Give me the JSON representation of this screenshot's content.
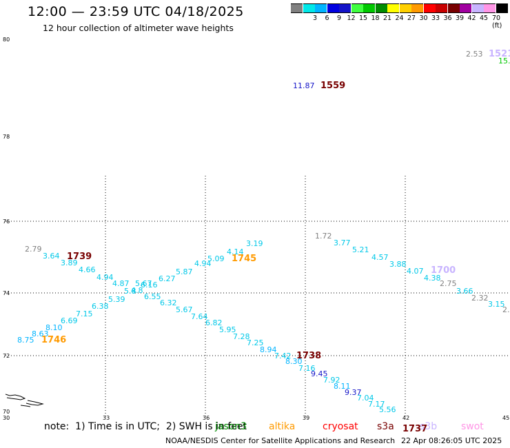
{
  "header": {
    "title": "12:00 — 23:59 UTC 04/18/2025",
    "subtitle": "12 hour collection of altimeter wave heights"
  },
  "legend": {
    "unit": "70 (ft)",
    "entries": [
      {
        "label": "",
        "color": "#808080"
      },
      {
        "label": "3",
        "color": "#00e8e8"
      },
      {
        "label": "6",
        "color": "#00b4ff"
      },
      {
        "label": "9",
        "color": "#0000e0"
      },
      {
        "label": "12",
        "color": "#1414c8"
      },
      {
        "label": "15",
        "color": "#40ff40"
      },
      {
        "label": "18",
        "color": "#00c800"
      },
      {
        "label": "21",
        "color": "#008c00"
      },
      {
        "label": "24",
        "color": "#ffff00"
      },
      {
        "label": "27",
        "color": "#ffd000"
      },
      {
        "label": "30",
        "color": "#ff9a00"
      },
      {
        "label": "33",
        "color": "#ff0000"
      },
      {
        "label": "36",
        "color": "#c80000"
      },
      {
        "label": "39",
        "color": "#780000"
      },
      {
        "label": "42",
        "color": "#a000a0"
      },
      {
        "label": "45",
        "color": "#c8b4ff"
      },
      {
        "label": "",
        "color": "#ff96e6"
      },
      {
        "label": "",
        "color": "#000000"
      }
    ]
  },
  "axes": {
    "lat_labels": [
      "70",
      "72",
      "74",
      "76",
      "78",
      "80"
    ],
    "lon_labels": [
      "30",
      "33",
      "36",
      "39",
      "42",
      "45"
    ]
  },
  "soundings": [
    {
      "text": "2.53",
      "color": "#808080"
    },
    {
      "text": "1521",
      "color": "#c8b4ff"
    },
    {
      "text": "15.",
      "color": "#00c800"
    },
    {
      "text": "11.87",
      "color": "#1414c8"
    },
    {
      "text": "1559",
      "color": "#780000"
    },
    {
      "text": "2.79",
      "color": "#808080"
    },
    {
      "text": "3.64",
      "color": "#00c8e8"
    },
    {
      "text": "1739",
      "color": "#780000"
    },
    {
      "text": "3.89",
      "color": "#00c8e8"
    },
    {
      "text": "4.66",
      "color": "#00c8e8"
    },
    {
      "text": "4.94",
      "color": "#00c8e8"
    },
    {
      "text": "4.87",
      "color": "#00c8e8"
    },
    {
      "text": "5.39",
      "color": "#00c8e8"
    },
    {
      "text": "5.8",
      "color": "#00c8e8"
    },
    {
      "text": "4.8",
      "color": "#00c8e8"
    },
    {
      "text": "5.67",
      "color": "#00c8e8"
    },
    {
      "text": "6.16",
      "color": "#00c8e8"
    },
    {
      "text": "6.55",
      "color": "#00c8e8"
    },
    {
      "text": "6.27",
      "color": "#00c8e8"
    },
    {
      "text": "6.32",
      "color": "#00c8e8"
    },
    {
      "text": "5.87",
      "color": "#00c8e8"
    },
    {
      "text": "5.67",
      "color": "#00c8e8"
    },
    {
      "text": "4.94",
      "color": "#00c8e8"
    },
    {
      "text": "5.09",
      "color": "#00c8e8"
    },
    {
      "text": "4.14",
      "color": "#00c8e8"
    },
    {
      "text": "1745",
      "color": "#ff9a00"
    },
    {
      "text": "3.19",
      "color": "#00c8e8"
    },
    {
      "text": "6.38",
      "color": "#00c8e8"
    },
    {
      "text": "7.15",
      "color": "#00c8e8"
    },
    {
      "text": "6.69",
      "color": "#00c8e8"
    },
    {
      "text": "8.10",
      "color": "#00b4ff"
    },
    {
      "text": "8.63",
      "color": "#00b4ff"
    },
    {
      "text": "8.75",
      "color": "#00b4ff"
    },
    {
      "text": "1746",
      "color": "#ff9a00"
    },
    {
      "text": "7.64",
      "color": "#00c8e8"
    },
    {
      "text": "6.82",
      "color": "#00c8e8"
    },
    {
      "text": "5.95",
      "color": "#00c8e8"
    },
    {
      "text": "7.28",
      "color": "#00c8e8"
    },
    {
      "text": "7.25",
      "color": "#00c8e8"
    },
    {
      "text": "8.94",
      "color": "#00b4ff"
    },
    {
      "text": "7.42",
      "color": "#00c8e8"
    },
    {
      "text": "1738",
      "color": "#780000"
    },
    {
      "text": "8.30",
      "color": "#00b4ff"
    },
    {
      "text": "7.16",
      "color": "#00c8e8"
    },
    {
      "text": "9.45",
      "color": "#1414c8"
    },
    {
      "text": "7.92",
      "color": "#00c8e8"
    },
    {
      "text": "8.11",
      "color": "#00b4ff"
    },
    {
      "text": "9.37",
      "color": "#1414c8"
    },
    {
      "text": "7.04",
      "color": "#00c8e8"
    },
    {
      "text": "7.17",
      "color": "#00c8e8"
    },
    {
      "text": "5.56",
      "color": "#00c8e8"
    },
    {
      "text": "1737",
      "color": "#780000"
    },
    {
      "text": "1.72",
      "color": "#808080"
    },
    {
      "text": "3.77",
      "color": "#00c8e8"
    },
    {
      "text": "5.21",
      "color": "#00c8e8"
    },
    {
      "text": "4.57",
      "color": "#00c8e8"
    },
    {
      "text": "3.88",
      "color": "#00c8e8"
    },
    {
      "text": "4.07",
      "color": "#00c8e8"
    },
    {
      "text": "1700",
      "color": "#c8b4ff"
    },
    {
      "text": "4.38",
      "color": "#00c8e8"
    },
    {
      "text": "2.75",
      "color": "#808080"
    },
    {
      "text": "3.66",
      "color": "#00c8e8"
    },
    {
      "text": "2.32",
      "color": "#808080"
    },
    {
      "text": "3.15",
      "color": "#00c8e8"
    },
    {
      "text": "2.",
      "color": "#808080"
    }
  ],
  "footer": {
    "note": "note:  1) Time is in UTC;  2) SWH is in feet",
    "satellites": [
      {
        "name": "jason3",
        "color": "#008c00"
      },
      {
        "name": "altika",
        "color": "#ff9a00"
      },
      {
        "name": "cryosat",
        "color": "#ff0000"
      },
      {
        "name": "s3a",
        "color": "#780000"
      },
      {
        "name": "s3b",
        "color": "#c8b4ff"
      },
      {
        "name": "swot",
        "color": "#ff96e6"
      }
    ],
    "credit_org": "NOAA/NESDIS Center for Satellite Applications and Research",
    "credit_time": "22 Apr 08:26:05 UTC 2025"
  }
}
